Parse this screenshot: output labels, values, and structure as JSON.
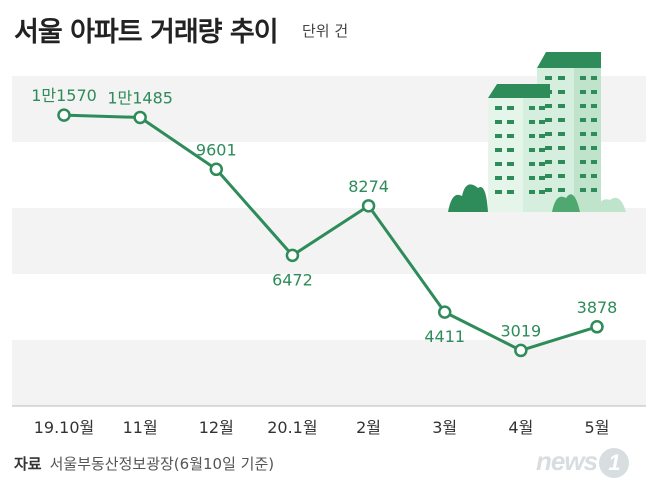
{
  "header": {
    "title": "서울 아파트 거래량 추이",
    "unit": "단위 건"
  },
  "footer": {
    "source_label": "자료",
    "source_text": "서울부동산정보광장(6월10일 기준)",
    "logo_text": "news",
    "logo_mark": "1"
  },
  "colors": {
    "line": "#2e8b5a",
    "band": "#f3f3f3",
    "axis": "#bbbbbb",
    "building_light": "#d6eedd",
    "building_dark": "#2e8b5a"
  },
  "illustration": {
    "icon": "apartment-buildings-icon"
  },
  "chart_data": {
    "type": "line",
    "title": "서울 아파트 거래량 추이",
    "unit": "단위 건",
    "categories": [
      "19.10월",
      "11월",
      "12월",
      "20.1월",
      "2월",
      "3월",
      "4월",
      "5월"
    ],
    "values": [
      11570,
      11485,
      9601,
      6472,
      8274,
      4411,
      3019,
      3878
    ],
    "value_labels": [
      "1만1570",
      "1만1485",
      "9601",
      "6472",
      "8274",
      "4411",
      "3019",
      "3878"
    ],
    "label_positions": [
      "above",
      "above",
      "above",
      "below",
      "above",
      "below",
      "above",
      "above"
    ],
    "ylim": [
      1000,
      13500
    ],
    "grid": "alternating horizontal bands",
    "legend": "none"
  }
}
